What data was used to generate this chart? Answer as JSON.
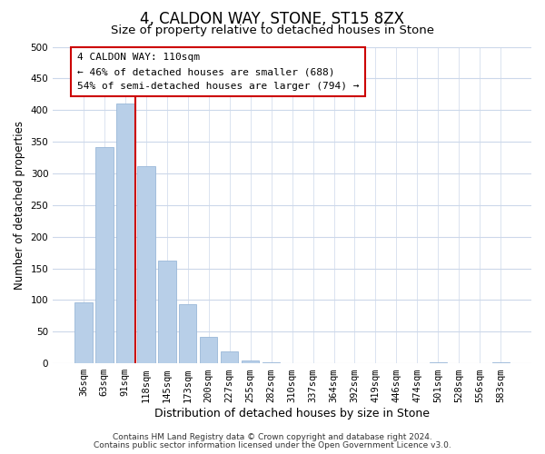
{
  "title": "4, CALDON WAY, STONE, ST15 8ZX",
  "subtitle": "Size of property relative to detached houses in Stone",
  "xlabel": "Distribution of detached houses by size in Stone",
  "ylabel": "Number of detached properties",
  "bar_labels": [
    "36sqm",
    "63sqm",
    "91sqm",
    "118sqm",
    "145sqm",
    "173sqm",
    "200sqm",
    "227sqm",
    "255sqm",
    "282sqm",
    "310sqm",
    "337sqm",
    "364sqm",
    "392sqm",
    "419sqm",
    "446sqm",
    "474sqm",
    "501sqm",
    "528sqm",
    "556sqm",
    "583sqm"
  ],
  "bar_values": [
    96,
    341,
    411,
    311,
    163,
    93,
    42,
    19,
    5,
    2,
    0,
    0,
    0,
    0,
    0,
    0,
    0,
    2,
    0,
    0,
    2
  ],
  "bar_color": "#b8cfe8",
  "bar_edge_color": "#9ab8d8",
  "vline_x_index": 2.5,
  "vline_color": "#cc0000",
  "annotation_title": "4 CALDON WAY: 110sqm",
  "annotation_line1": "← 46% of detached houses are smaller (688)",
  "annotation_line2": "54% of semi-detached houses are larger (794) →",
  "annotation_box_color": "#ffffff",
  "annotation_box_edge": "#cc0000",
  "ylim": [
    0,
    500
  ],
  "yticks": [
    0,
    50,
    100,
    150,
    200,
    250,
    300,
    350,
    400,
    450,
    500
  ],
  "footer1": "Contains HM Land Registry data © Crown copyright and database right 2024.",
  "footer2": "Contains public sector information licensed under the Open Government Licence v3.0.",
  "bg_color": "#ffffff",
  "grid_color": "#ccd8ea",
  "title_fontsize": 12,
  "subtitle_fontsize": 9.5,
  "xlabel_fontsize": 9,
  "ylabel_fontsize": 8.5,
  "tick_fontsize": 7.5,
  "annotation_fontsize": 8,
  "footer_fontsize": 6.5
}
